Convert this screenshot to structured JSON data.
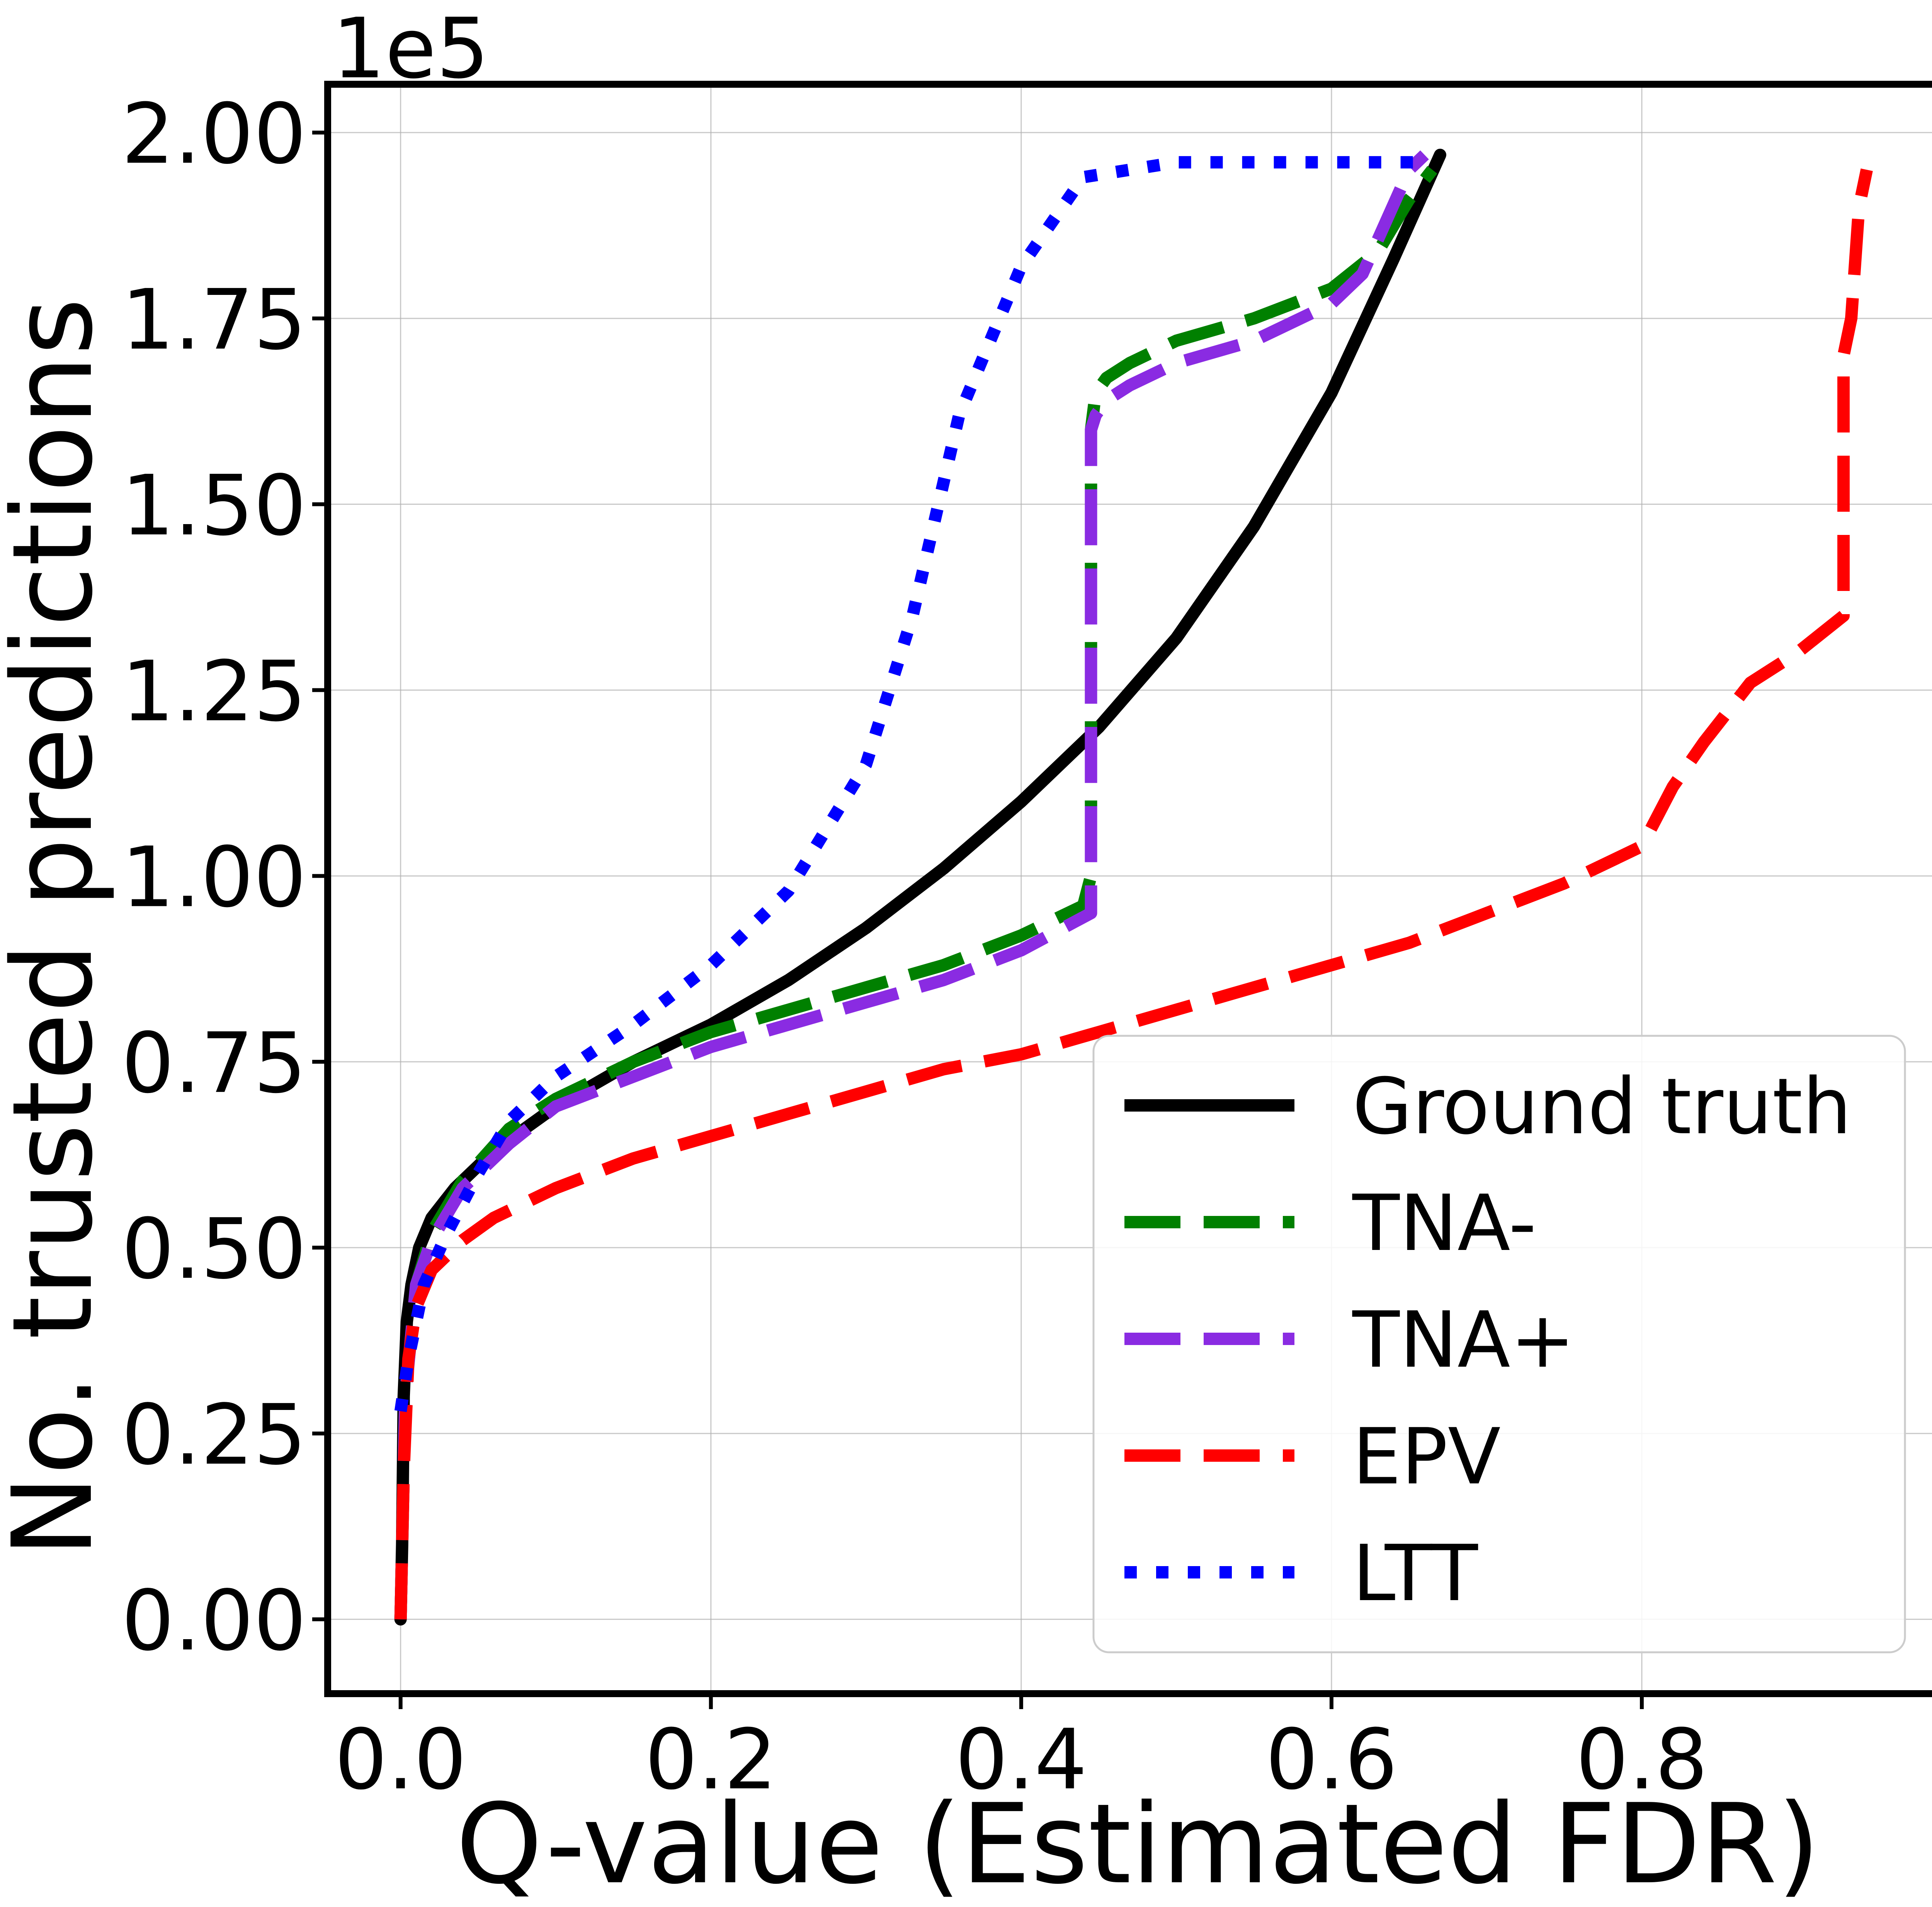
{
  "chart_data": {
    "type": "line",
    "xlabel": "Q-value (Estimated FDR)",
    "ylabel": "No. trusted predictions",
    "y_offset_text": "1e5",
    "xlim": [
      -0.047,
      0.997
    ],
    "ylim": [
      -0.1,
      2.065
    ],
    "x_ticks": [
      0.0,
      0.2,
      0.4,
      0.6,
      0.8
    ],
    "x_tick_labels": [
      "0.0",
      "0.2",
      "0.4",
      "0.6",
      "0.8"
    ],
    "y_ticks": [
      0.0,
      0.25,
      0.5,
      0.75,
      1.0,
      1.25,
      1.5,
      1.75,
      2.0
    ],
    "y_tick_labels": [
      "0.00",
      "0.25",
      "0.50",
      "0.75",
      "1.00",
      "1.25",
      "1.50",
      "1.75",
      "2.00"
    ],
    "grid": true,
    "legend_position": "lower-right",
    "series": [
      {
        "name": "Ground truth",
        "color": "#000000",
        "style": "solid",
        "x": [
          0.0,
          0.001,
          0.002,
          0.004,
          0.007,
          0.012,
          0.02,
          0.035,
          0.06,
          0.1,
          0.15,
          0.2,
          0.25,
          0.3,
          0.35,
          0.4,
          0.45,
          0.5,
          0.55,
          0.6,
          0.64,
          0.67
        ],
        "y": [
          0.0,
          0.1,
          0.3,
          0.4,
          0.45,
          0.5,
          0.54,
          0.58,
          0.63,
          0.69,
          0.75,
          0.8,
          0.86,
          0.93,
          1.01,
          1.1,
          1.2,
          1.32,
          1.47,
          1.65,
          1.83,
          1.97
        ]
      },
      {
        "name": "TNA-",
        "color": "#008000",
        "style": "dashed",
        "x": [
          0.0,
          0.003,
          0.01,
          0.02,
          0.04,
          0.07,
          0.1,
          0.15,
          0.2,
          0.25,
          0.3,
          0.35,
          0.4,
          0.44,
          0.445,
          0.445,
          0.448,
          0.455,
          0.47,
          0.5,
          0.55,
          0.6,
          0.63,
          0.65,
          0.665
        ],
        "y": [
          0.0,
          0.3,
          0.45,
          0.52,
          0.59,
          0.66,
          0.7,
          0.75,
          0.79,
          0.82,
          0.85,
          0.88,
          0.92,
          0.96,
          1.0,
          1.6,
          1.65,
          1.67,
          1.69,
          1.72,
          1.75,
          1.79,
          1.84,
          1.91,
          1.95
        ]
      },
      {
        "name": "TNA+",
        "color": "#8A2BE2",
        "style": "dashed",
        "x": [
          0.0,
          0.003,
          0.01,
          0.02,
          0.04,
          0.07,
          0.1,
          0.15,
          0.2,
          0.25,
          0.3,
          0.35,
          0.4,
          0.445,
          0.445,
          0.448,
          0.455,
          0.47,
          0.5,
          0.55,
          0.6,
          0.62,
          0.635,
          0.65,
          0.66
        ],
        "y": [
          0.0,
          0.3,
          0.45,
          0.51,
          0.58,
          0.64,
          0.69,
          0.73,
          0.77,
          0.8,
          0.83,
          0.86,
          0.9,
          0.95,
          1.6,
          1.62,
          1.64,
          1.66,
          1.69,
          1.72,
          1.77,
          1.81,
          1.88,
          1.95,
          1.97
        ]
      },
      {
        "name": "EPV",
        "color": "#FF0000",
        "style": "dashed",
        "x": [
          0.0,
          0.002,
          0.005,
          0.01,
          0.02,
          0.04,
          0.06,
          0.1,
          0.15,
          0.2,
          0.25,
          0.3,
          0.35,
          0.4,
          0.45,
          0.5,
          0.55,
          0.6,
          0.65,
          0.7,
          0.75,
          0.8,
          0.82,
          0.84,
          0.87,
          0.9,
          0.93,
          0.93,
          0.935,
          0.94,
          0.945
        ],
        "y": [
          0.0,
          0.2,
          0.35,
          0.42,
          0.47,
          0.51,
          0.54,
          0.58,
          0.62,
          0.65,
          0.68,
          0.71,
          0.74,
          0.76,
          0.79,
          0.82,
          0.85,
          0.88,
          0.91,
          0.95,
          0.99,
          1.04,
          1.12,
          1.18,
          1.26,
          1.3,
          1.35,
          1.7,
          1.75,
          1.9,
          1.95
        ]
      },
      {
        "name": "LTT",
        "color": "#0000FF",
        "style": "dotted",
        "x": [
          0.0,
          0.005,
          0.015,
          0.03,
          0.05,
          0.07,
          0.1,
          0.15,
          0.2,
          0.25,
          0.3,
          0.33,
          0.36,
          0.4,
          0.44,
          0.5,
          0.55,
          0.6,
          0.66
        ],
        "y": [
          0.28,
          0.35,
          0.45,
          0.52,
          0.6,
          0.67,
          0.73,
          0.8,
          0.88,
          0.98,
          1.15,
          1.35,
          1.62,
          1.82,
          1.94,
          1.96,
          1.96,
          1.96,
          1.96
        ]
      }
    ]
  }
}
